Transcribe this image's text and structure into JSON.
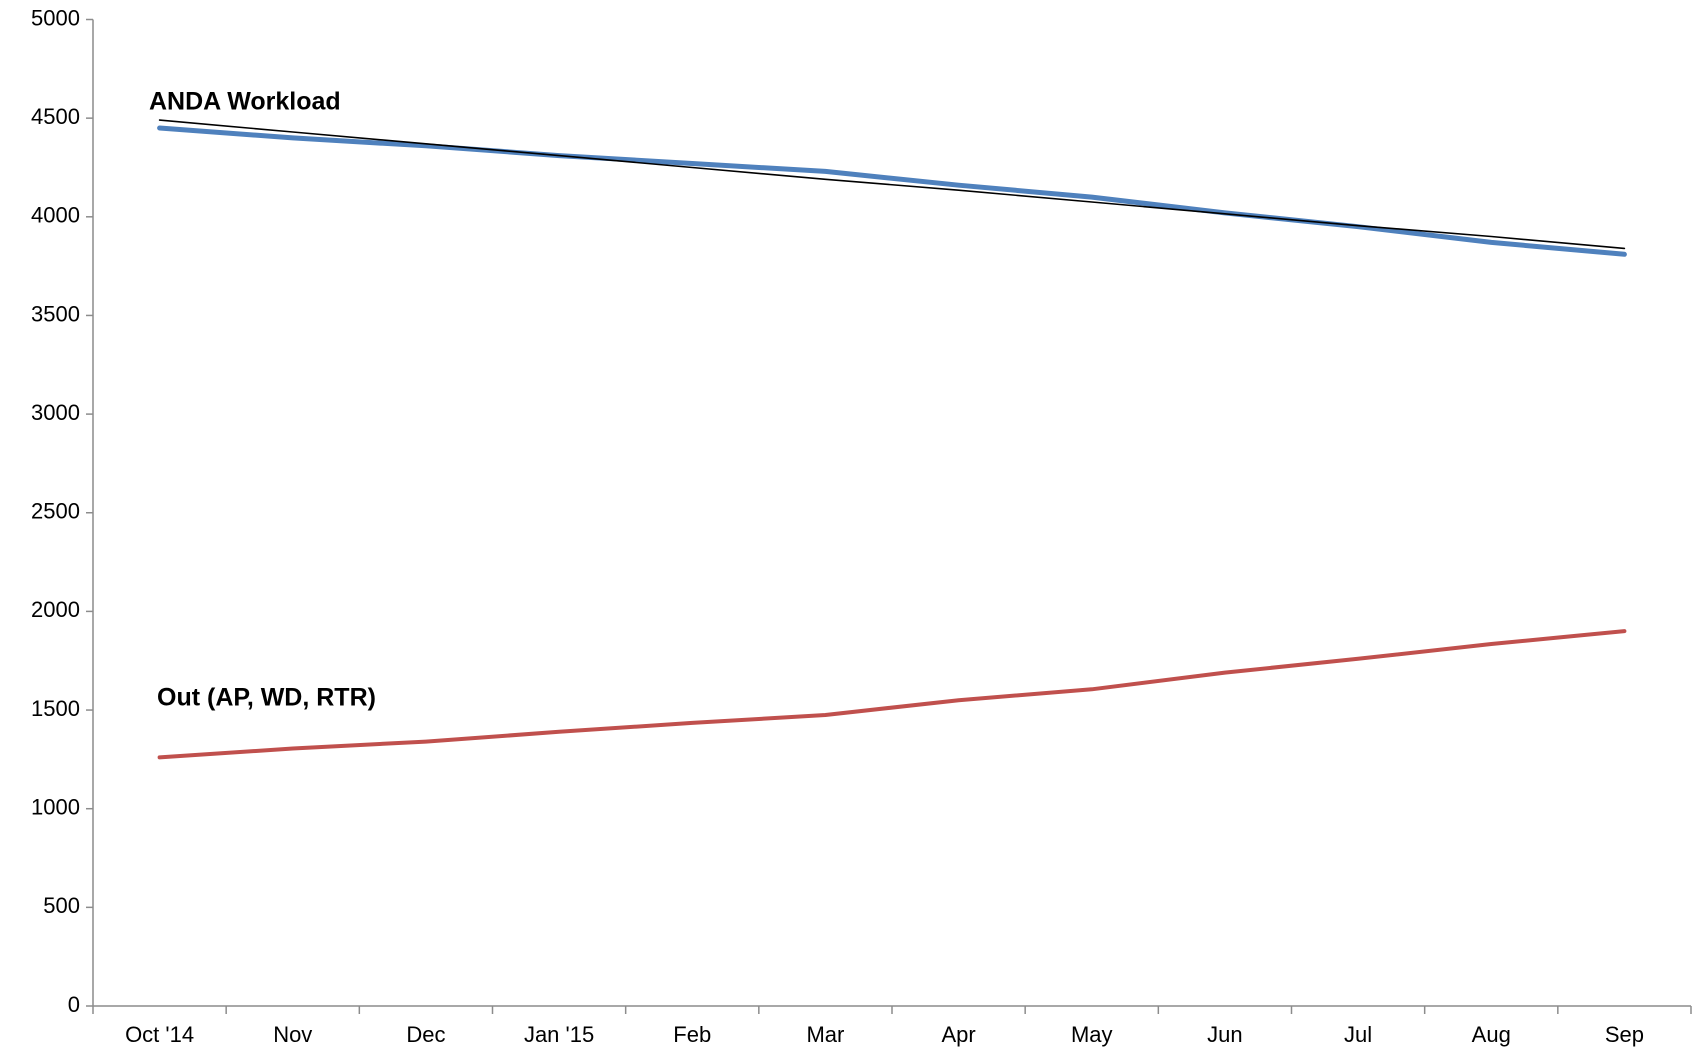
{
  "chart_data": {
    "type": "line",
    "categories": [
      "Oct '14",
      "Nov",
      "Dec",
      "Jan '15",
      "Feb",
      "Mar",
      "Apr",
      "May",
      "Jun",
      "Jul",
      "Aug",
      "Sep"
    ],
    "series": [
      {
        "name": "ANDA Workload",
        "color": "#4f81bd",
        "values": [
          4450,
          4400,
          4360,
          4310,
          4270,
          4230,
          4160,
          4100,
          4020,
          3950,
          3870,
          3810
        ]
      },
      {
        "name": "Out (AP, WD, RTR)",
        "color": "#c0504d",
        "values": [
          1260,
          1305,
          1340,
          1390,
          1435,
          1475,
          1550,
          1605,
          1690,
          1760,
          1835,
          1900
        ]
      },
      {
        "color": "#000000",
        "values": [
          4490,
          4430,
          4370,
          4310,
          4250,
          4190,
          4135,
          4075,
          4015,
          3955,
          3900,
          3840
        ]
      }
    ],
    "ylim": [
      0,
      5000
    ],
    "yticks": [
      0,
      500,
      1000,
      1500,
      2000,
      2500,
      3000,
      3500,
      4000,
      4500,
      5000
    ],
    "grid": false
  }
}
